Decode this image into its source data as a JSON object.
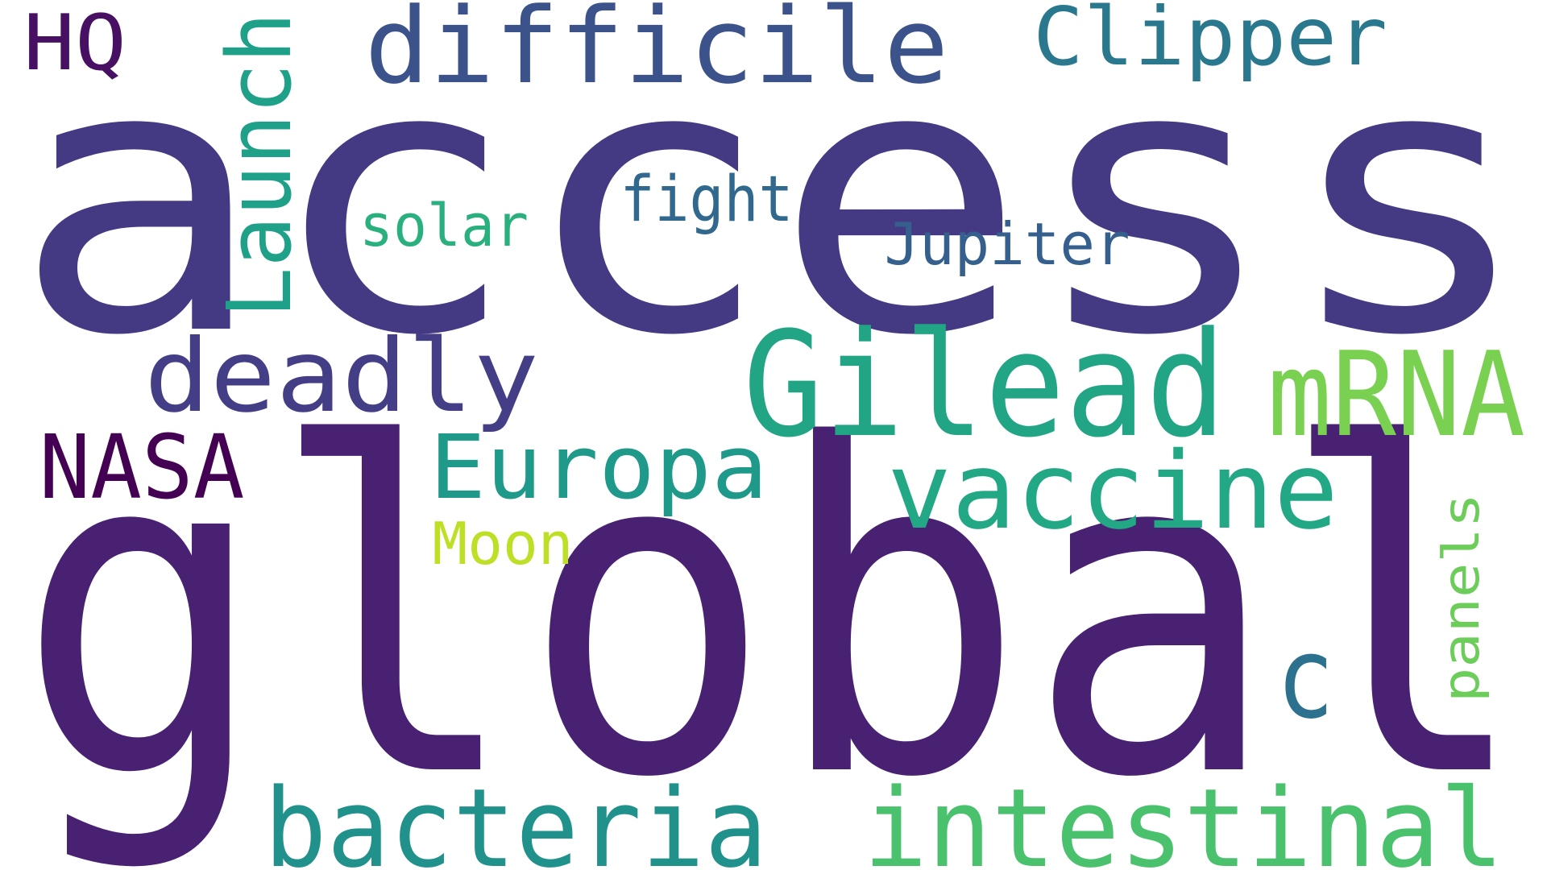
{
  "words": [
    {
      "id": "access",
      "text": "access",
      "color": "#443983"
    },
    {
      "id": "global",
      "text": "global",
      "color": "#482173"
    },
    {
      "id": "gilead",
      "text": "Gilead",
      "color": "#21a585"
    },
    {
      "id": "mrna",
      "text": "mRNA",
      "color": "#7ad151"
    },
    {
      "id": "vaccine",
      "text": "vaccine",
      "color": "#22a884"
    },
    {
      "id": "intestinal",
      "text": "intestinal",
      "color": "#4ac16d"
    },
    {
      "id": "bacteria",
      "text": "bacteria",
      "color": "#21918c"
    },
    {
      "id": "difficile",
      "text": "difficile",
      "color": "#3b528b"
    },
    {
      "id": "clipper",
      "text": "Clipper",
      "color": "#2a788e"
    },
    {
      "id": "deadly",
      "text": "deadly",
      "color": "#433e85"
    },
    {
      "id": "europa",
      "text": "Europa",
      "color": "#1f9a8a"
    },
    {
      "id": "nasa",
      "text": "NASA",
      "color": "#440154"
    },
    {
      "id": "launch",
      "text": "Launch",
      "color": "#1fa088"
    },
    {
      "id": "hq",
      "text": "HQ",
      "color": "#471063"
    },
    {
      "id": "fight",
      "text": "fight",
      "color": "#31688e"
    },
    {
      "id": "jupiter",
      "text": "Jupiter",
      "color": "#35608d"
    },
    {
      "id": "solar",
      "text": "solar",
      "color": "#2ab07f"
    },
    {
      "id": "moon",
      "text": "Moon",
      "color": "#bddf26"
    },
    {
      "id": "c",
      "text": "c",
      "color": "#2c728e"
    },
    {
      "id": "panels",
      "text": "panels",
      "color": "#6ccd5a"
    }
  ]
}
